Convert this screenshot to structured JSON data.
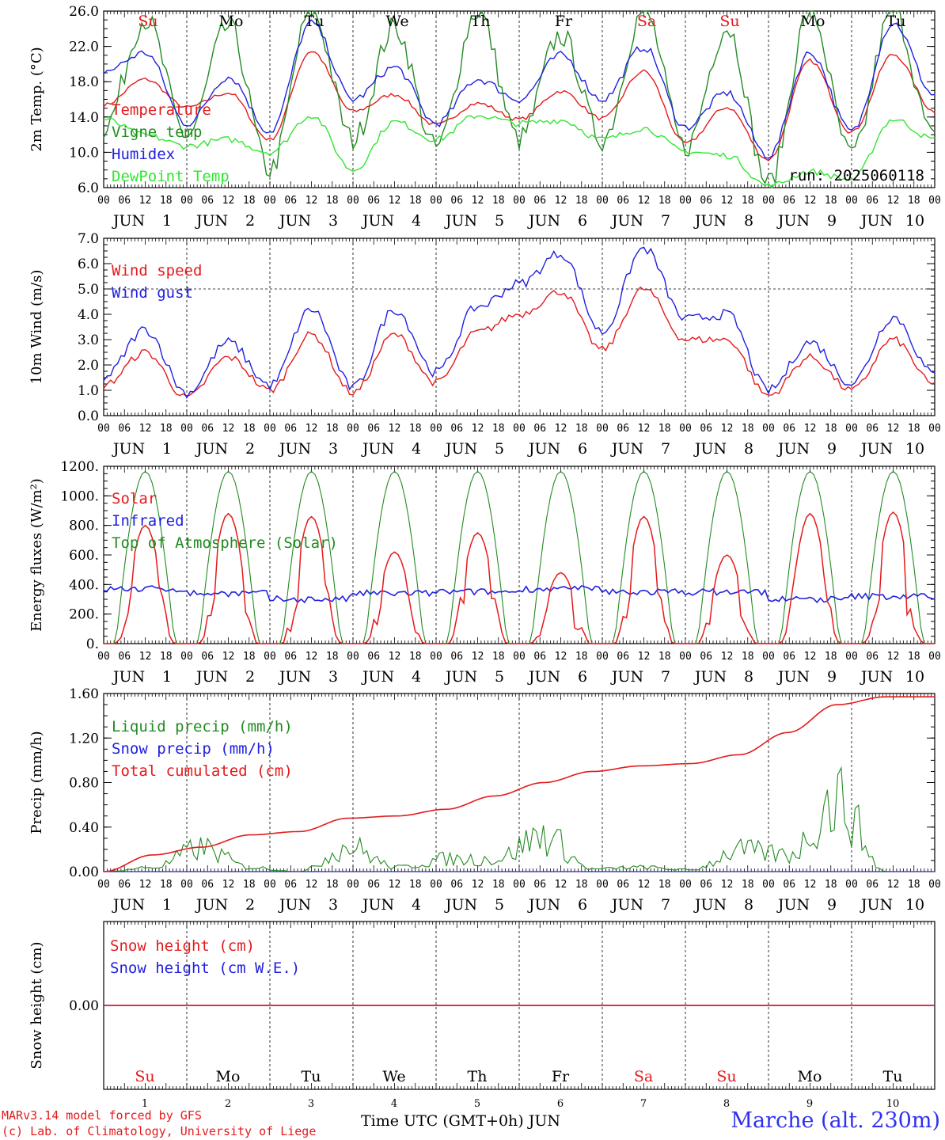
{
  "chart_data": [
    {
      "type": "line",
      "ylabel": "2m Temp. (°C)",
      "ylim": [
        6.0,
        28.0
      ],
      "yticks": [
        "6.0",
        "10.0",
        "14.0",
        "18.0",
        "22.0",
        "26.0"
      ],
      "annotation": "run: 2025060118",
      "x": [
        "Jun 1 00",
        "Jun 1 12",
        "Jun 2 00",
        "Jun 2 12",
        "Jun 3 00",
        "Jun 3 12",
        "Jun 4 00",
        "Jun 4 12",
        "Jun 5 00",
        "Jun 5 12",
        "Jun 6 00",
        "Jun 6 12",
        "Jun 7 00",
        "Jun 7 12",
        "Jun 8 00",
        "Jun 8 12",
        "Jun 9 00",
        "Jun 9 12",
        "Jun 10 00",
        "Jun 10 12",
        "Jun 10 23"
      ],
      "series": [
        {
          "name": "Temperature",
          "color": "#e41a1c",
          "values": [
            16.3,
            19.5,
            16.0,
            17.8,
            12.0,
            23.0,
            15.5,
            17.6,
            13.8,
            16.5,
            14.5,
            18.0,
            14.6,
            20.5,
            11.5,
            16.0,
            9.5,
            21.8,
            12.9,
            22.6,
            15.5
          ]
        },
        {
          "name": "Vigne temp",
          "color": "#228b22",
          "values": [
            13.5,
            27.0,
            12.5,
            26.0,
            8.2,
            28.0,
            12.0,
            26.0,
            11.0,
            28.0,
            12.0,
            25.0,
            12.0,
            28.0,
            11.0,
            26.0,
            6.5,
            28.0,
            10.0,
            28.0,
            12.0
          ]
        },
        {
          "name": "Humidex",
          "color": "#2020e0",
          "values": [
            20.5,
            22.8,
            14.0,
            19.8,
            13.0,
            26.5,
            17.0,
            21.0,
            14.0,
            19.5,
            17.0,
            22.5,
            17.0,
            23.5,
            13.5,
            17.8,
            10.0,
            22.8,
            13.0,
            26.5,
            17.5
          ]
        },
        {
          "name": "DewPoint Temp",
          "color": "#32e632",
          "values": [
            14.5,
            12.5,
            11.2,
            12.0,
            10.4,
            15.0,
            8.2,
            14.2,
            12.0,
            15.0,
            14.0,
            14.4,
            12.0,
            13.4,
            10.5,
            10.0,
            6.2,
            8.0,
            7.0,
            14.5,
            12.0
          ]
        }
      ]
    },
    {
      "type": "line",
      "ylabel": "10m Wind (m/s)",
      "ylim": [
        0.0,
        7.0
      ],
      "yticks": [
        "0.0",
        "1.0",
        "2.0",
        "3.0",
        "4.0",
        "5.0",
        "6.0",
        "7.0"
      ],
      "refline": 5.0,
      "x": [
        "Jun 1 00",
        "Jun 1 12",
        "Jun 2 00",
        "Jun 2 12",
        "Jun 3 00",
        "Jun 3 12",
        "Jun 4 00",
        "Jun 4 12",
        "Jun 5 00",
        "Jun 5 12",
        "Jun 6 00",
        "Jun 6 12",
        "Jun 7 00",
        "Jun 7 12",
        "Jun 8 00",
        "Jun 8 12",
        "Jun 9 00",
        "Jun 9 12",
        "Jun 10 00",
        "Jun 10 12",
        "Jun 10 23"
      ],
      "series": [
        {
          "name": "Wind speed",
          "color": "#e41a1c",
          "values": [
            1.2,
            2.5,
            0.7,
            2.3,
            1.0,
            3.2,
            0.9,
            3.2,
            1.3,
            3.3,
            4.0,
            4.9,
            2.6,
            5.0,
            3.0,
            3.0,
            0.8,
            2.3,
            1.0,
            3.0,
            1.2
          ]
        },
        {
          "name": "Wind gust",
          "color": "#2020e0",
          "values": [
            1.5,
            3.4,
            0.9,
            2.9,
            1.2,
            4.2,
            1.1,
            4.2,
            1.7,
            4.3,
            5.2,
            6.4,
            3.3,
            6.6,
            3.8,
            4.0,
            1.0,
            2.9,
            1.3,
            3.9,
            1.6
          ]
        }
      ]
    },
    {
      "type": "line",
      "ylabel": "Energy fluxes (W/m²)",
      "ylim": [
        0,
        1200
      ],
      "yticks": [
        "0.",
        "200.",
        "400.",
        "600.",
        "800.",
        "1000.",
        "1200."
      ],
      "solar_daily_peaks": [
        800,
        880,
        860,
        620,
        750,
        480,
        860,
        600,
        880,
        890
      ],
      "infrared_daily": [
        370,
        340,
        300,
        340,
        350,
        370,
        350,
        350,
        300,
        320
      ],
      "toa_peak": 1165,
      "series": [
        {
          "name": "Solar",
          "color": "#e41a1c"
        },
        {
          "name": "Infrared",
          "color": "#2020e0"
        },
        {
          "name": "Top of Atmosphere (Solar)",
          "color": "#228b22"
        }
      ]
    },
    {
      "type": "line",
      "ylabel": "Precip (mm/h)",
      "ylim": [
        0.0,
        1.6
      ],
      "yticks": [
        "0.00",
        "0.40",
        "0.80",
        "1.20",
        "1.60"
      ],
      "x": [
        "Jun 1 00",
        "Jun 1 12",
        "Jun 2 00",
        "Jun 2 12",
        "Jun 3 00",
        "Jun 3 12",
        "Jun 4 00",
        "Jun 4 12",
        "Jun 5 00",
        "Jun 5 12",
        "Jun 6 00",
        "Jun 6 12",
        "Jun 7 00",
        "Jun 7 12",
        "Jun 8 00",
        "Jun 8 12",
        "Jun 9 00",
        "Jun 10 23"
      ],
      "series": [
        {
          "name": "Liquid precip (mm/h)",
          "color": "#228b22",
          "values": [
            0.0,
            0.05,
            0.28,
            0.05,
            0.0,
            0.3,
            0.05,
            0.15,
            0.15,
            0.43,
            0.03,
            0.05,
            0.02,
            0.25,
            0.2,
            0.85,
            0.0,
            0.0
          ]
        },
        {
          "name": "Snow precip (mm/h)",
          "color": "#2020e0",
          "values": [
            0,
            0,
            0,
            0,
            0,
            0,
            0,
            0,
            0,
            0,
            0,
            0,
            0,
            0,
            0,
            0,
            0,
            0
          ]
        },
        {
          "name": "Total cumulated (cm)",
          "color": "#e41a1c",
          "values": [
            0.0,
            0.15,
            0.22,
            0.33,
            0.36,
            0.48,
            0.5,
            0.56,
            0.68,
            0.8,
            0.9,
            0.95,
            0.97,
            1.05,
            1.25,
            1.5,
            1.57,
            1.57
          ]
        }
      ]
    },
    {
      "type": "line",
      "ylabel": "Snow height (cm)",
      "ytick": "0.00",
      "series": [
        {
          "name": "Snow height (cm)",
          "color": "#e41a1c",
          "values": [
            0.0,
            0.0
          ]
        },
        {
          "name": "Snow height (cm W.E.)",
          "color": "#2020e0",
          "values": [
            0.0,
            0.0
          ]
        }
      ]
    }
  ],
  "axis": {
    "hours": [
      "00",
      "06",
      "12",
      "18"
    ],
    "last_hour": "00",
    "month": "JUN",
    "dates": [
      "1",
      "2",
      "3",
      "4",
      "5",
      "6",
      "7",
      "8",
      "9",
      "10"
    ],
    "weekdays": [
      "Su",
      "Mo",
      "Tu",
      "We",
      "Th",
      "Fr",
      "Sa",
      "Su",
      "Mo",
      "Tu"
    ],
    "weekend_color": "#e41a1c",
    "weekday_color": "#000000"
  },
  "footer": {
    "credit_line1": "MARv3.14 model forced by GFS",
    "credit_line2": "(c) Lab. of Climatology, University of Liege",
    "xlabel": "Time UTC (GMT+0h) JUN",
    "station": "Marche (alt. 230m)"
  }
}
